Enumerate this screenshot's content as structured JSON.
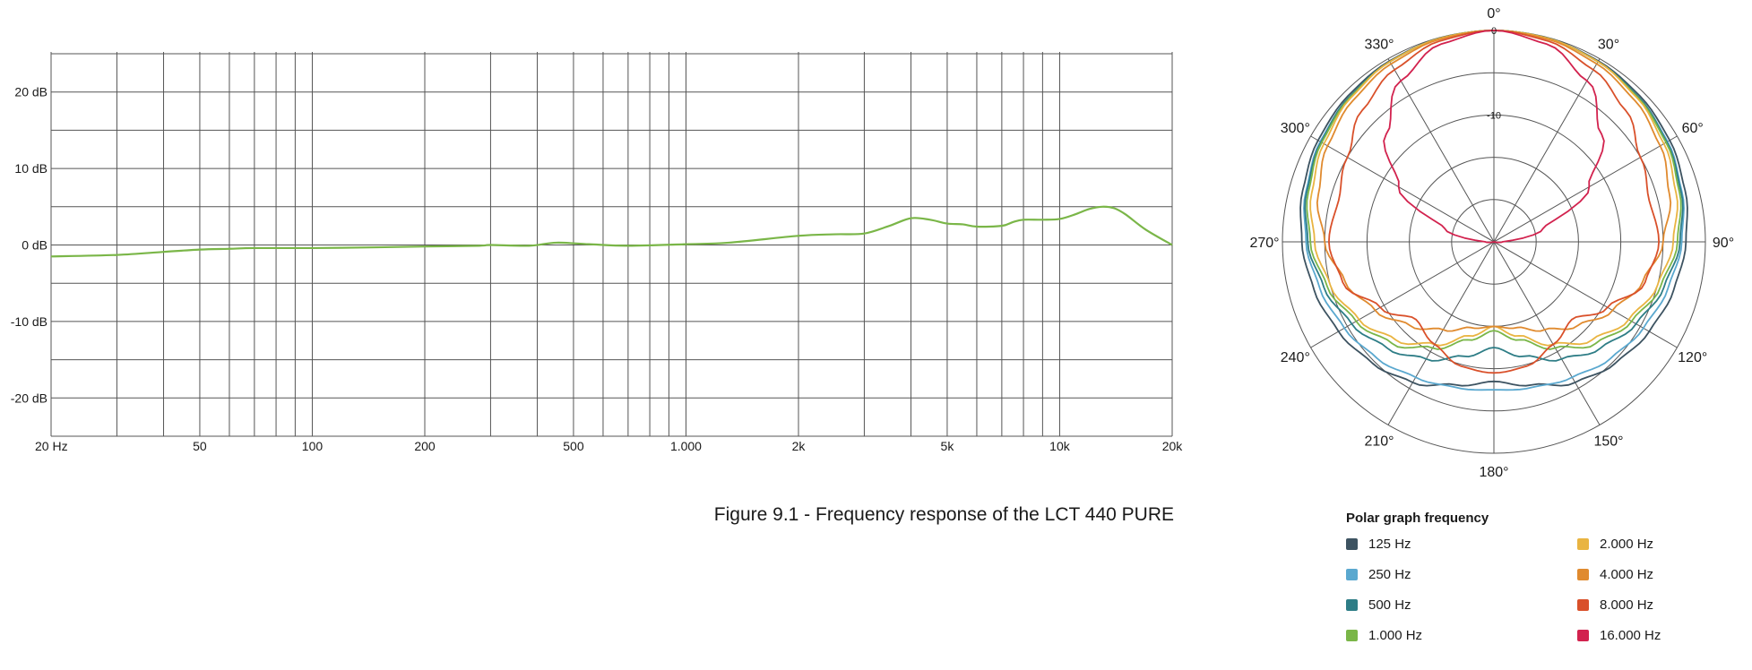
{
  "chart_data": [
    {
      "type": "line",
      "title": "",
      "xlabel": "",
      "ylabel": "",
      "xscale": "log",
      "xlim": [
        20,
        20000
      ],
      "ylim": [
        -25,
        25
      ],
      "grid": true,
      "y_ticks": [
        {
          "value": 20,
          "label": "20 dB"
        },
        {
          "value": 10,
          "label": "10 dB"
        },
        {
          "value": 0,
          "label": "0 dB"
        },
        {
          "value": -10,
          "label": "-10 dB"
        },
        {
          "value": -20,
          "label": "-20 dB"
        }
      ],
      "x_ticks": [
        {
          "value": 20,
          "label": "20 Hz"
        },
        {
          "value": 50,
          "label": "50"
        },
        {
          "value": 100,
          "label": "100"
        },
        {
          "value": 200,
          "label": "200"
        },
        {
          "value": 500,
          "label": "500"
        },
        {
          "value": 1000,
          "label": "1.000"
        },
        {
          "value": 2000,
          "label": "2k"
        },
        {
          "value": 5000,
          "label": "5k"
        },
        {
          "value": 10000,
          "label": "10k"
        },
        {
          "value": 20000,
          "label": "20k"
        }
      ],
      "series": [
        {
          "color": "#7ab648",
          "x": [
            20,
            30,
            40,
            50,
            60,
            70,
            100,
            150,
            200,
            280,
            300,
            380,
            450,
            550,
            700,
            1000,
            1300,
            2000,
            2500,
            3000,
            3500,
            4000,
            4500,
            5000,
            5500,
            6000,
            7000,
            7500,
            8000,
            9000,
            10000,
            11000,
            12000,
            13000,
            14000,
            15000,
            17000,
            20000
          ],
          "y": [
            -1.5,
            -1.3,
            -0.9,
            -0.6,
            -0.5,
            -0.4,
            -0.4,
            -0.3,
            -0.2,
            -0.1,
            0.0,
            -0.1,
            0.3,
            0.1,
            -0.1,
            0.1,
            0.3,
            1.2,
            1.4,
            1.5,
            2.5,
            3.5,
            3.3,
            2.8,
            2.7,
            2.4,
            2.5,
            3.0,
            3.3,
            3.3,
            3.4,
            4.0,
            4.7,
            5.0,
            4.8,
            4.0,
            2.0,
            0.0
          ]
        }
      ]
    },
    {
      "type": "polar",
      "title": "",
      "rlim": [
        -25,
        0
      ],
      "ring_labels": [
        {
          "value": 0,
          "label": "0"
        },
        {
          "value": -10,
          "label": "-10"
        }
      ],
      "angle_labels": [
        "0°",
        "30°",
        "60°",
        "90°",
        "120°",
        "150°",
        "180°",
        "210°",
        "240°",
        "270°",
        "300°",
        "330°"
      ],
      "angles": [
        0,
        15,
        30,
        45,
        60,
        75,
        90,
        105,
        120,
        135,
        150,
        165,
        180
      ],
      "series": [
        {
          "name": "125 Hz",
          "color": "#3d5361",
          "r": [
            0,
            -0.1,
            -0.3,
            -0.6,
            -1.0,
            -1.6,
            -2.3,
            -3.0,
            -3.8,
            -4.7,
            -5.8,
            -7.5,
            -8.5
          ]
        },
        {
          "name": "250 Hz",
          "color": "#5aa8cf",
          "r": [
            0,
            -0.1,
            -0.4,
            -0.8,
            -1.3,
            -2.0,
            -2.8,
            -3.7,
            -4.6,
            -5.5,
            -6.5,
            -7.2,
            -7.5
          ]
        },
        {
          "name": "500 Hz",
          "color": "#2e7d86",
          "r": [
            0,
            -0.1,
            -0.4,
            -0.8,
            -1.4,
            -2.1,
            -3.0,
            -4.2,
            -5.6,
            -7.2,
            -9.0,
            -11.0,
            -12.5
          ]
        },
        {
          "name": "1.000 Hz",
          "color": "#7ab648",
          "r": [
            0,
            -0.1,
            -0.4,
            -0.9,
            -1.5,
            -2.3,
            -3.3,
            -4.6,
            -6.2,
            -8.0,
            -10.5,
            -13.0,
            -14.5
          ]
        },
        {
          "name": "2.000 Hz",
          "color": "#e9b441",
          "r": [
            0,
            -0.1,
            -0.4,
            -1.0,
            -1.8,
            -2.7,
            -3.8,
            -5.0,
            -6.6,
            -8.6,
            -11.0,
            -13.5,
            -15.0
          ]
        },
        {
          "name": "4.000 Hz",
          "color": "#e08a2e",
          "r": [
            0,
            -0.2,
            -0.7,
            -1.4,
            -2.3,
            -3.5,
            -5.0,
            -6.8,
            -8.8,
            -11.0,
            -13.0,
            -14.5,
            -15.0
          ]
        },
        {
          "name": "8.000 Hz",
          "color": "#d9502a",
          "r": [
            0,
            -0.4,
            -1.5,
            -3.0,
            -5.0,
            -6.0,
            -5.5,
            -6.5,
            -9.5,
            -12.0,
            -11.0,
            -9.8,
            -9.5
          ]
        },
        {
          "name": "16.000 Hz",
          "color": "#d2224e",
          "r": [
            0,
            -0.8,
            -3.0,
            -7.0,
            -12.0,
            -19.0,
            -24.0,
            -25.0,
            -25.0,
            -25.0,
            -25.0,
            -25.0,
            -25.0
          ]
        }
      ]
    }
  ],
  "caption": "Figure 9.1 - Frequency response of the LCT 440 PURE",
  "legend": {
    "title": "Polar graph frequency",
    "items": [
      {
        "label": "125 Hz",
        "color": "#3d5361"
      },
      {
        "label": "2.000 Hz",
        "color": "#e9b441"
      },
      {
        "label": "250 Hz",
        "color": "#5aa8cf"
      },
      {
        "label": "4.000 Hz",
        "color": "#e08a2e"
      },
      {
        "label": "500 Hz",
        "color": "#2e7d86"
      },
      {
        "label": "8.000 Hz",
        "color": "#d9502a"
      },
      {
        "label": "1.000 Hz",
        "color": "#7ab648"
      },
      {
        "label": "16.000 Hz",
        "color": "#d2224e"
      }
    ]
  }
}
